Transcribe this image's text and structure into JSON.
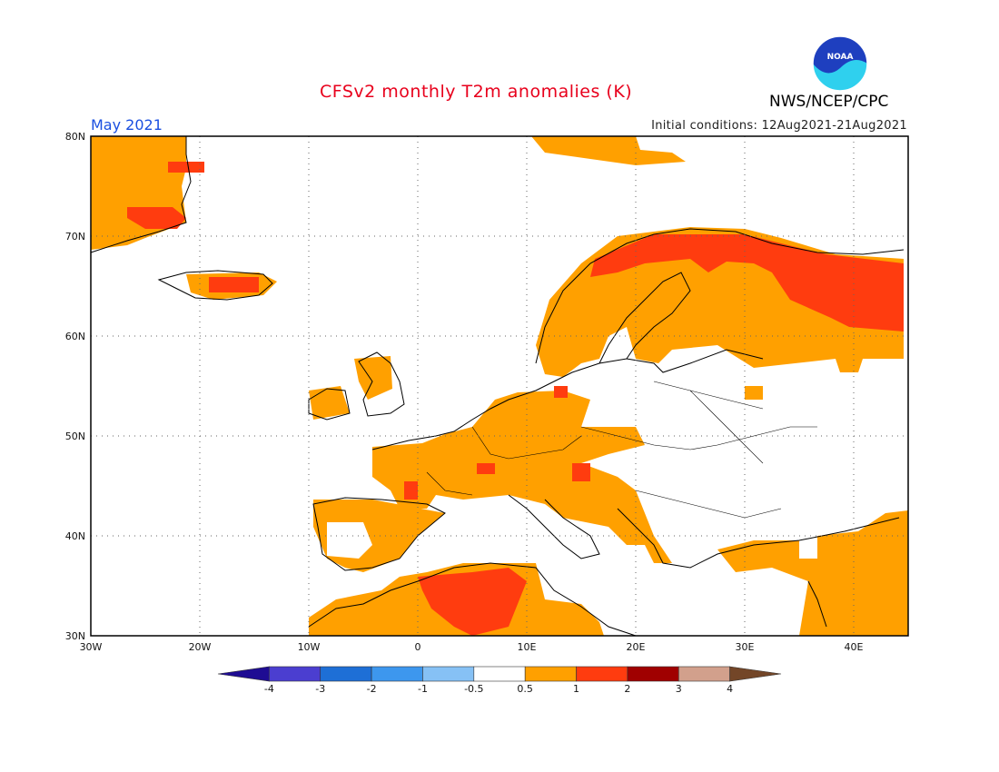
{
  "title": "CFSv2 monthly T2m anomalies (K)",
  "month": "May 2021",
  "initial_conditions": "Initial conditions: 12Aug2021-21Aug2021",
  "agency": "NWS/NCEP/CPC",
  "logo_text": "NOAA",
  "lat_labels": [
    "80N",
    "70N",
    "60N",
    "50N",
    "40N",
    "30N"
  ],
  "lon_labels": [
    "30W",
    "20W",
    "10W",
    "0",
    "10E",
    "20E",
    "30E",
    "40E"
  ],
  "colorbar": {
    "ticks": [
      "-4",
      "-3",
      "-2",
      "-1",
      "-0.5",
      "0.5",
      "1",
      "2",
      "3",
      "4"
    ],
    "colors": [
      "#1e0c93",
      "#4b3ed0",
      "#1e6fd6",
      "#3d97ee",
      "#86c1f5",
      "#ffffff",
      "#ffa000",
      "#ff3c0f",
      "#a00000",
      "#d2a08c",
      "#734628"
    ]
  }
}
